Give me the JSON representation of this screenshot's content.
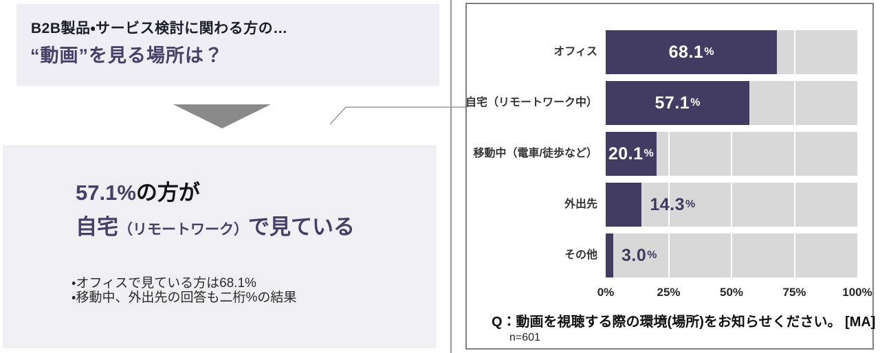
{
  "colors": {
    "bar": "#423c62",
    "track": "#d8d8d8",
    "accent_purple": "#454067",
    "panel_background": "#efeef4",
    "divider_gray": "#9a9a9a"
  },
  "left": {
    "intro": {
      "line1": "B2B製品・サービス検討に関わる方の…",
      "line2": "“動画”を見る場所は？"
    },
    "result": {
      "headline_value": "57.1%",
      "headline_suffix": "の方が",
      "headline_place": "自宅",
      "headline_paren": "（リモートワーク）",
      "headline_tail": "で見ている",
      "notes": [
        "・オフィスで見ている方は68.1%",
        "・移動中、外出先の回答も二桁%の結果"
      ]
    }
  },
  "chart_data": {
    "type": "bar",
    "orientation": "horizontal",
    "categories": [
      "オフィス",
      "自宅（リモートワーク中）",
      "移動中（電車/徒歩など）",
      "外出先",
      "その他"
    ],
    "values": [
      68.1,
      57.1,
      20.1,
      14.3,
      3.0
    ],
    "value_labels": [
      "68.1%",
      "57.1%",
      "20.1%",
      "14.3%",
      "3.0%"
    ],
    "label_inside": [
      true,
      true,
      true,
      false,
      false
    ],
    "xlim": [
      0,
      100
    ],
    "x_ticks": [
      "0%",
      "25%",
      "50%",
      "75%",
      "100%"
    ],
    "grid": "white vertical lines at 25/50/75",
    "legend": "none",
    "question": "Q：動画を視聴する際の環境(場所)をお知らせください。 [MA]",
    "sample": "n=601"
  }
}
